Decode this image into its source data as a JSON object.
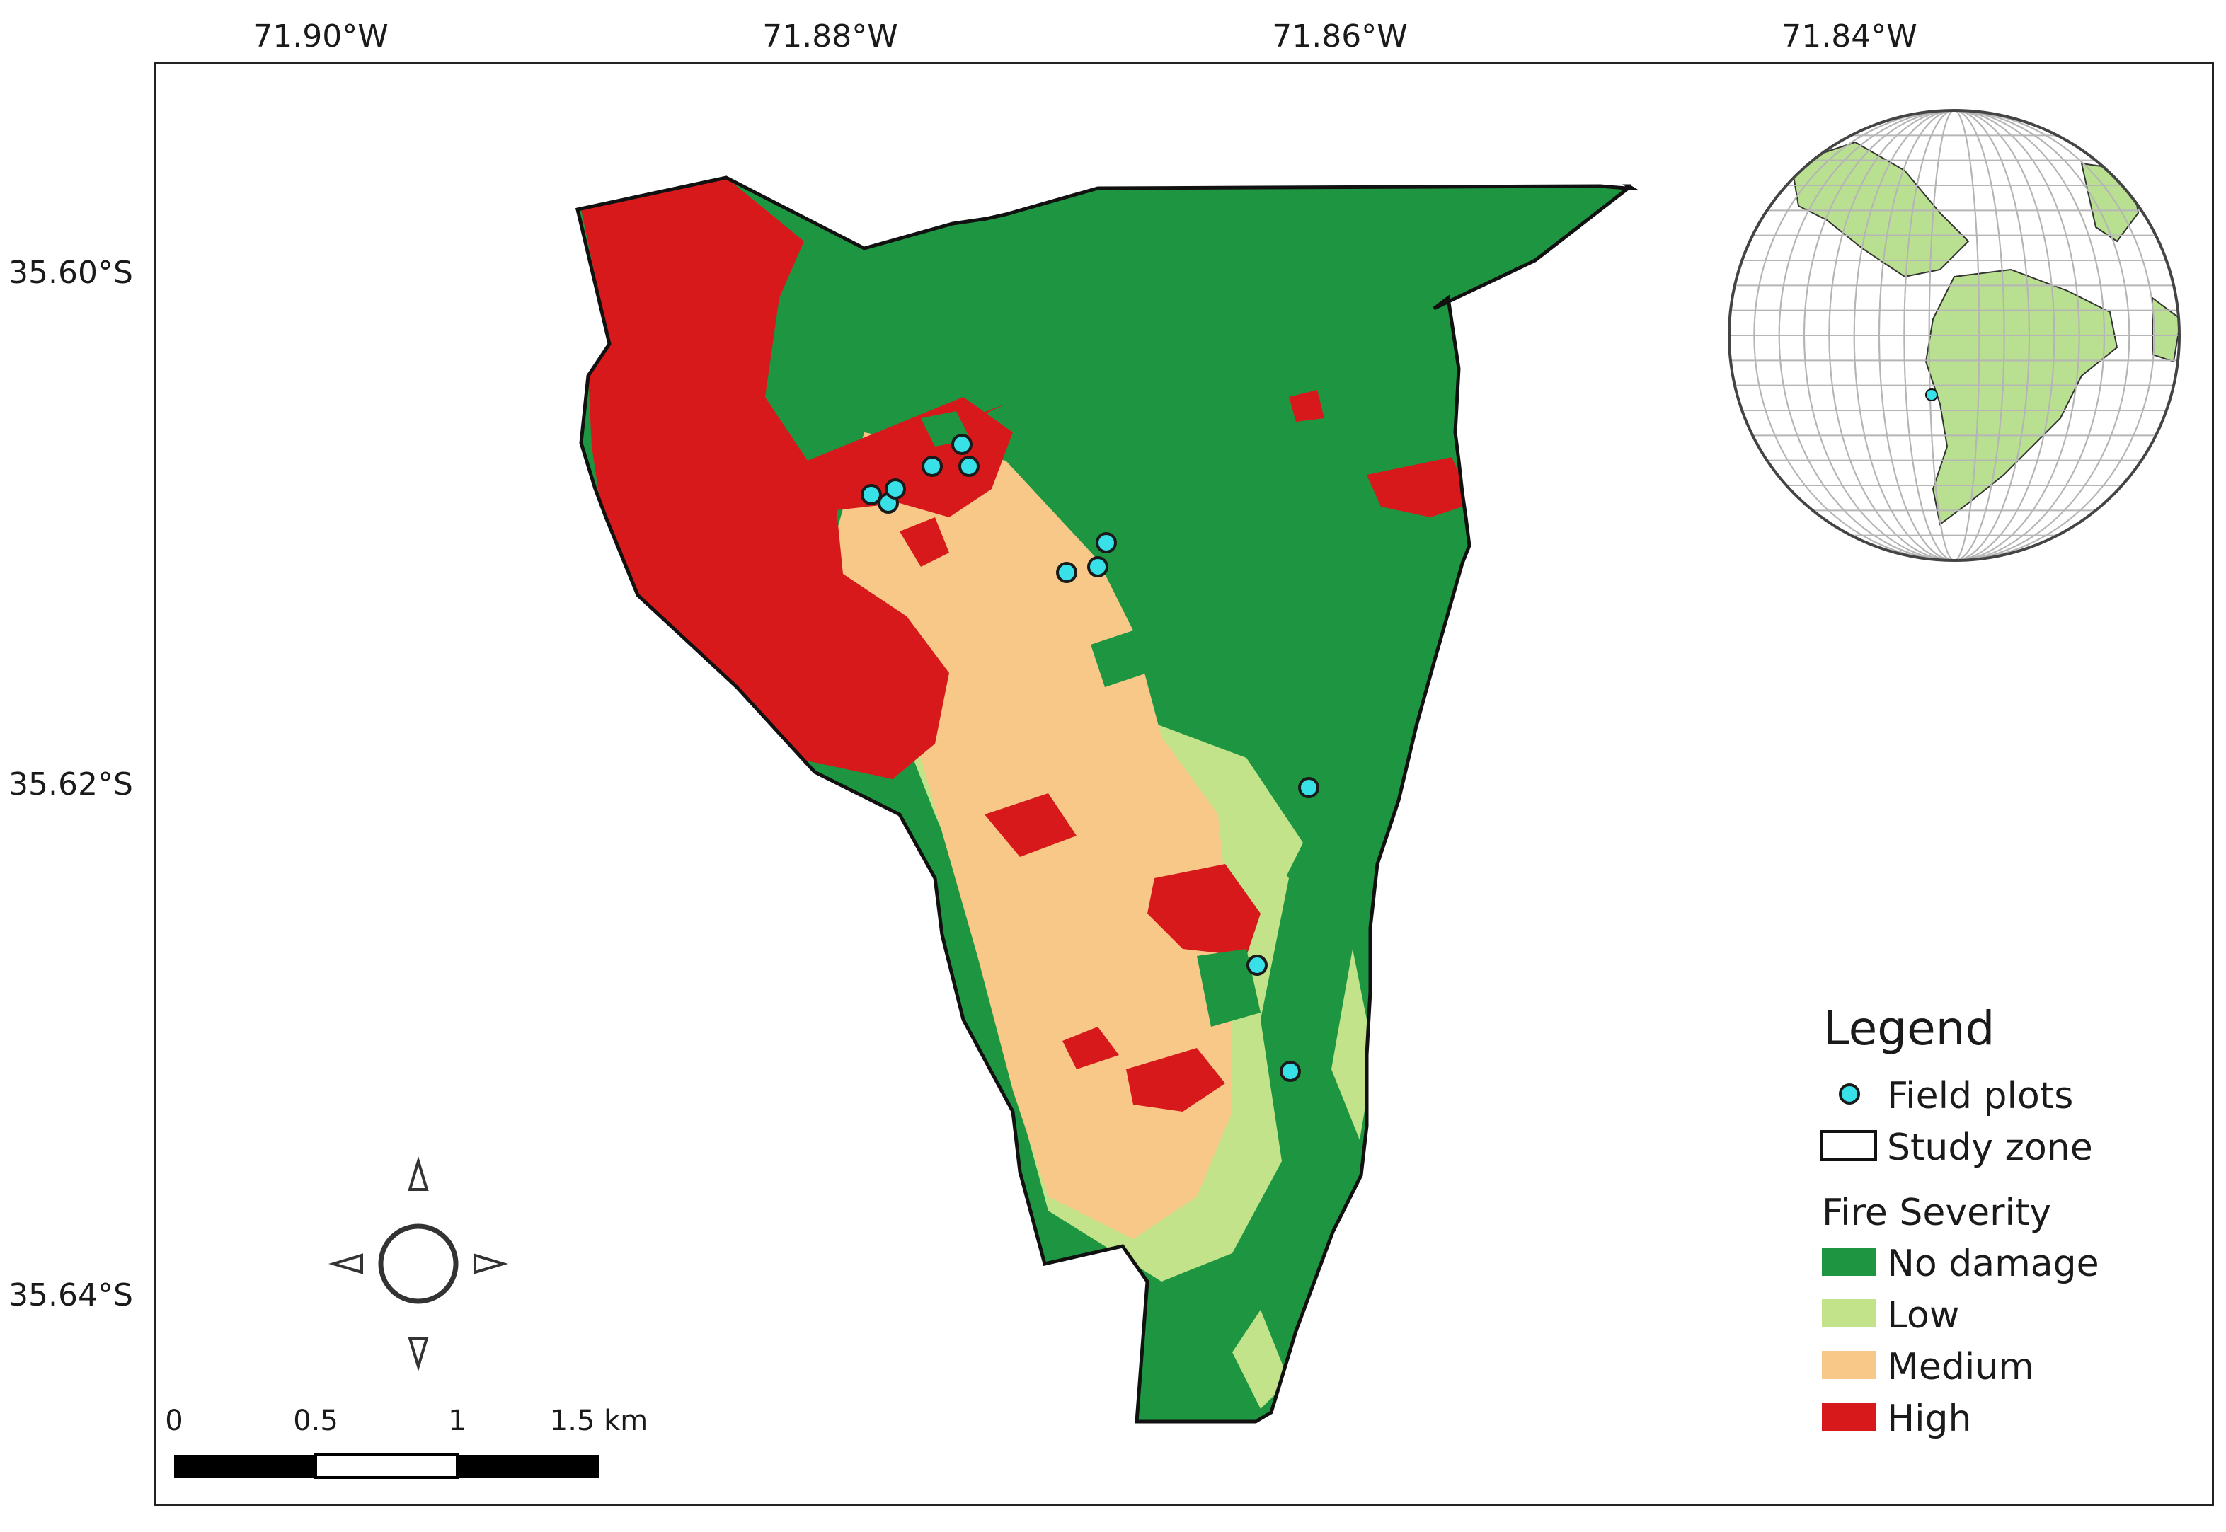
{
  "axes": {
    "lon_labels": [
      "71.90°W",
      "71.88°W",
      "71.86°W",
      "71.84°W"
    ],
    "lat_labels": [
      "35.60°S",
      "35.62°S",
      "35.64°S"
    ]
  },
  "legend": {
    "title": "Legend",
    "field_plots": "Field plots",
    "study_zone": "Study zone",
    "severity_title": "Fire Severity",
    "classes": [
      {
        "label": "No damage",
        "color": "#1e9641"
      },
      {
        "label": "Low",
        "color": "#c3e38b"
      },
      {
        "label": "Medium",
        "color": "#f7c888"
      },
      {
        "label": "High",
        "color": "#d7191c"
      }
    ]
  },
  "colors": {
    "field_plot": "#38e0e8",
    "outline": "#111111",
    "land": "#b9df90",
    "ocean": "#ffffff",
    "graticule": "#b5b5b5"
  },
  "scale_bar": {
    "ticks": [
      "0",
      "0.5",
      "1",
      "1.5 km"
    ]
  },
  "icons": {
    "north_arrow": "compass-rose-icon",
    "field_plot": "circle-marker-icon",
    "study_zone": "outline-rectangle-icon"
  }
}
